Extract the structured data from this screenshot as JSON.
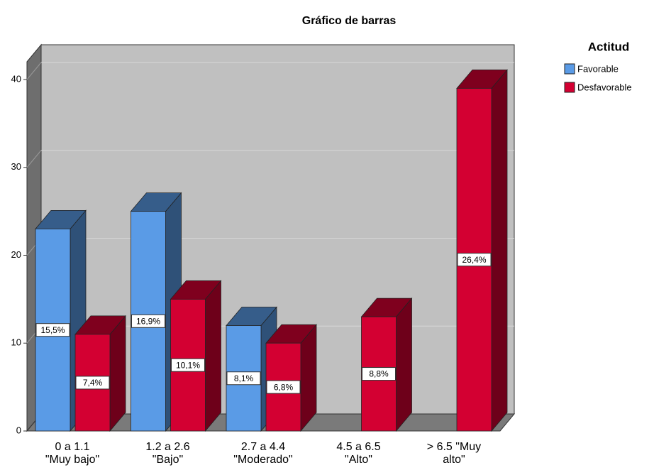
{
  "chart_data": {
    "type": "bar3d",
    "title": "Gráfico de barras",
    "categories": [
      "0  a 1.1\n\"Muy bajo\"",
      "1.2 a 2.6\n\"Bajo\"",
      "2.7 a 4.4\n\"Moderado\"",
      "4.5 a 6.5\n\"Alto\"",
      "> 6.5 \"Muy\nalto\""
    ],
    "legend_title": "Actitud",
    "series": [
      {
        "name": "Favorable",
        "color": "#5a9be6",
        "values": [
          23,
          25,
          12,
          null,
          null
        ],
        "percent_labels": [
          "15,5%",
          "16,9%",
          "8,1%",
          null,
          null
        ]
      },
      {
        "name": "Desfavorable",
        "color": "#d30032",
        "values": [
          11,
          15,
          10,
          13,
          39
        ],
        "percent_labels": [
          "7,4%",
          "10,1%",
          "6,8%",
          "8,8%",
          "26,4%"
        ]
      }
    ],
    "ylim": [
      0,
      40
    ],
    "yticks": [
      0,
      10,
      20,
      30,
      40
    ],
    "grid": true
  }
}
